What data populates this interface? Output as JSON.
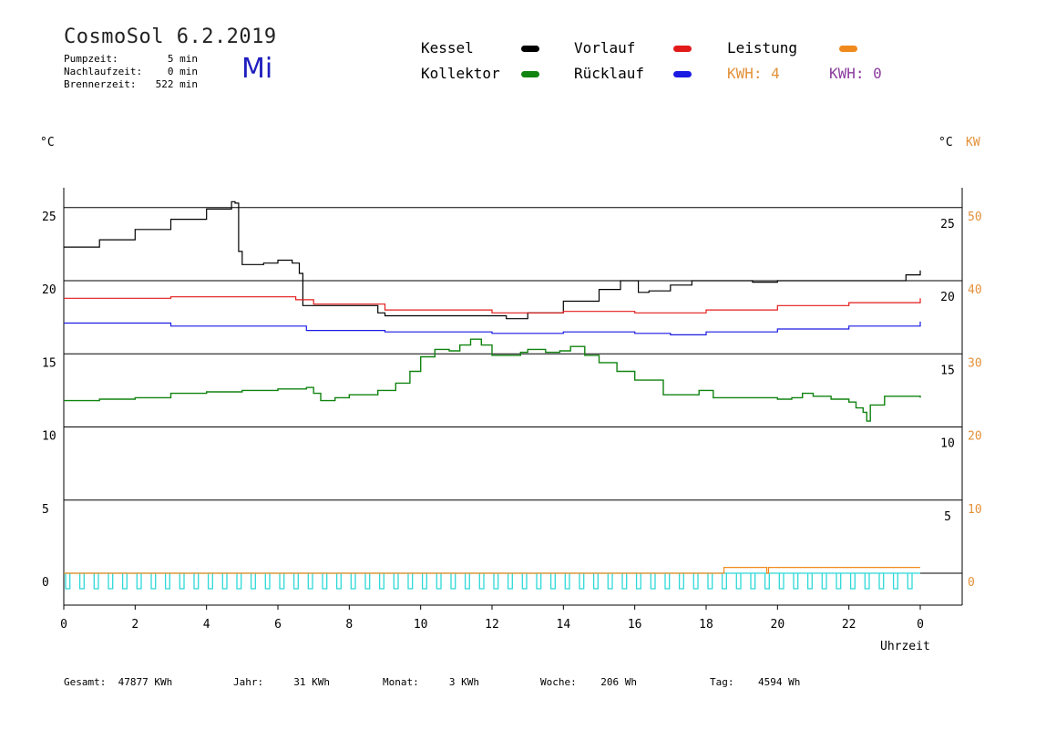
{
  "header": {
    "title": "CosmoSol 6.2.2019",
    "day": "Mi",
    "pump_label": "Pumpzeit:",
    "pump_value": "5 min",
    "nachlauf_label": "Nachlaufzeit:",
    "nachlauf_value": "0 min",
    "brenner_label": "Brennerzeit:",
    "brenner_value": "522 min"
  },
  "legend": {
    "kessel": "Kessel",
    "kollektor": "Kollektor",
    "vorlauf": "Vorlauf",
    "ruecklauf": "Rücklauf",
    "leistung": "Leistung",
    "kwh1_label": "KWH:",
    "kwh1_value": "4",
    "kwh2_label": "KWH:",
    "kwh2_value": "0",
    "colors": {
      "kessel": "#000000",
      "kollektor": "#118311",
      "vorlauf": "#e31a1a",
      "ruecklauf": "#1a1ae3",
      "leistung": "#f08a1c",
      "pumpe": "#2fd8d8"
    }
  },
  "axes": {
    "left_unit": "°C",
    "right_unit": "°C",
    "right_unit2": "KW",
    "xlabel": "Uhrzeit"
  },
  "footer": {
    "gesamt_label": "Gesamt:",
    "gesamt_value": "47877 KWh",
    "jahr_label": "Jahr:",
    "jahr_value": "31 KWh",
    "monat_label": "Monat:",
    "monat_value": "3 KWh",
    "woche_label": "Woche:",
    "woche_value": "206 Wh",
    "tag_label": "Tag:",
    "tag_value": "4594 Wh"
  },
  "chart_data": {
    "type": "line",
    "x_range": [
      0,
      24
    ],
    "y_left_range": [
      -2,
      26.5
    ],
    "gridlines_left": [
      0,
      5,
      10,
      15,
      20,
      25
    ],
    "left_ticks": [
      "0",
      "5",
      "10",
      "15",
      "20",
      "25"
    ],
    "x_ticks": [
      "0",
      "2",
      "4",
      "6",
      "8",
      "10",
      "12",
      "14",
      "16",
      "18",
      "20",
      "22",
      "0"
    ],
    "right_ticks_c": [
      "5",
      "10",
      "15",
      "20",
      "25"
    ],
    "right_ticks_c_values": [
      4.5,
      9.5,
      14.5,
      19.5,
      24.5
    ],
    "right_ticks_kw": [
      "0",
      "10",
      "20",
      "30",
      "40",
      "50"
    ],
    "right_ticks_kw_values": [
      0,
      5,
      10,
      15,
      20,
      25
    ],
    "series": [
      {
        "name": "Kessel",
        "key": "kessel",
        "points": [
          [
            0,
            22.3
          ],
          [
            1,
            22.8
          ],
          [
            2,
            23.5
          ],
          [
            3,
            24.2
          ],
          [
            4,
            24.9
          ],
          [
            4.7,
            25.4
          ],
          [
            4.8,
            25.3
          ],
          [
            4.9,
            22
          ],
          [
            5,
            21.1
          ],
          [
            5.6,
            21.2
          ],
          [
            6,
            21.4
          ],
          [
            6.4,
            21.2
          ],
          [
            6.6,
            20.5
          ],
          [
            6.7,
            18.3
          ],
          [
            8,
            18.3
          ],
          [
            8.8,
            17.8
          ],
          [
            9,
            17.6
          ],
          [
            12.3,
            17.6
          ],
          [
            12.4,
            17.4
          ],
          [
            13,
            17.8
          ],
          [
            14,
            18.6
          ],
          [
            15,
            19.4
          ],
          [
            15.6,
            20
          ],
          [
            16,
            20
          ],
          [
            16.1,
            19.2
          ],
          [
            16.4,
            19.3
          ],
          [
            17,
            19.7
          ],
          [
            17.6,
            20
          ],
          [
            19,
            20
          ],
          [
            19.3,
            19.9
          ],
          [
            20,
            20
          ],
          [
            23.3,
            20
          ],
          [
            23.6,
            20.4
          ],
          [
            24,
            20.7
          ]
        ]
      },
      {
        "name": "Vorlauf",
        "key": "vorlauf",
        "points": [
          [
            0,
            18.8
          ],
          [
            3,
            18.9
          ],
          [
            6,
            18.9
          ],
          [
            6.5,
            18.7
          ],
          [
            7,
            18.4
          ],
          [
            9,
            18.0
          ],
          [
            12,
            17.8
          ],
          [
            14,
            17.9
          ],
          [
            16,
            17.8
          ],
          [
            18,
            18.0
          ],
          [
            20,
            18.3
          ],
          [
            22,
            18.5
          ],
          [
            24,
            18.8
          ]
        ]
      },
      {
        "name": "Rücklauf",
        "key": "ruecklauf",
        "points": [
          [
            0,
            17.1
          ],
          [
            3,
            16.9
          ],
          [
            6,
            16.9
          ],
          [
            6.8,
            16.6
          ],
          [
            9,
            16.5
          ],
          [
            12,
            16.4
          ],
          [
            14,
            16.5
          ],
          [
            16,
            16.4
          ],
          [
            17,
            16.3
          ],
          [
            18,
            16.5
          ],
          [
            20,
            16.7
          ],
          [
            22,
            16.9
          ],
          [
            24,
            17.2
          ]
        ]
      },
      {
        "name": "Kollektor",
        "key": "kollektor",
        "points": [
          [
            0,
            11.8
          ],
          [
            1,
            11.9
          ],
          [
            2,
            12.0
          ],
          [
            3,
            12.3
          ],
          [
            4,
            12.4
          ],
          [
            5,
            12.5
          ],
          [
            6,
            12.6
          ],
          [
            6.8,
            12.7
          ],
          [
            7,
            12.3
          ],
          [
            7.2,
            11.8
          ],
          [
            7.6,
            12.0
          ],
          [
            8,
            12.2
          ],
          [
            8.8,
            12.5
          ],
          [
            9.3,
            13
          ],
          [
            9.7,
            13.8
          ],
          [
            10,
            14.8
          ],
          [
            10.4,
            15.3
          ],
          [
            10.8,
            15.2
          ],
          [
            11.1,
            15.6
          ],
          [
            11.4,
            16.0
          ],
          [
            11.7,
            15.6
          ],
          [
            12,
            14.9
          ],
          [
            12.5,
            14.9
          ],
          [
            12.8,
            15.1
          ],
          [
            13,
            15.3
          ],
          [
            13.5,
            15.1
          ],
          [
            13.9,
            15.2
          ],
          [
            14.2,
            15.5
          ],
          [
            14.6,
            14.9
          ],
          [
            15.0,
            14.4
          ],
          [
            15.5,
            13.8
          ],
          [
            16,
            13.2
          ],
          [
            16.8,
            12.2
          ],
          [
            17.4,
            12.2
          ],
          [
            17.8,
            12.5
          ],
          [
            18.2,
            12.0
          ],
          [
            19,
            12.0
          ],
          [
            20,
            11.9
          ],
          [
            20.4,
            12.0
          ],
          [
            20.7,
            12.3
          ],
          [
            21,
            12.1
          ],
          [
            21.5,
            11.9
          ],
          [
            22,
            11.7
          ],
          [
            22.2,
            11.3
          ],
          [
            22.4,
            11.0
          ],
          [
            22.5,
            10.4
          ],
          [
            22.6,
            11.5
          ],
          [
            23,
            12.1
          ],
          [
            24,
            12.0
          ]
        ]
      },
      {
        "name": "Leistung",
        "key": "leistung",
        "points": [
          [
            0,
            0
          ],
          [
            18.5,
            0
          ],
          [
            18.5,
            0.4
          ],
          [
            19.6,
            0.4
          ],
          [
            19.7,
            0
          ],
          [
            19.75,
            0.4
          ],
          [
            24,
            0.4
          ]
        ]
      }
    ]
  }
}
